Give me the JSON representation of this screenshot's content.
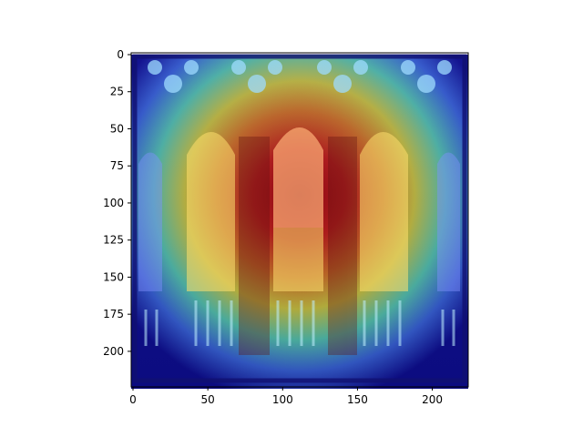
{
  "figure": {
    "background": "#ffffff",
    "image_description_colors": {
      "colormap": "jet",
      "cool": "#1020c8",
      "warm": "#f0e040",
      "hot": "#c01010"
    }
  },
  "axes": {
    "xlim": [
      0,
      224
    ],
    "ylim": [
      224,
      0
    ],
    "x_ticks": [
      0,
      50,
      100,
      150,
      200
    ],
    "y_ticks": [
      0,
      25,
      50,
      75,
      100,
      125,
      150,
      175,
      200
    ],
    "x_tick_labels": [
      "0",
      "50",
      "100",
      "150",
      "200"
    ],
    "y_tick_labels": [
      "0",
      "25",
      "50",
      "75",
      "100",
      "125",
      "150",
      "175",
      "200"
    ]
  }
}
